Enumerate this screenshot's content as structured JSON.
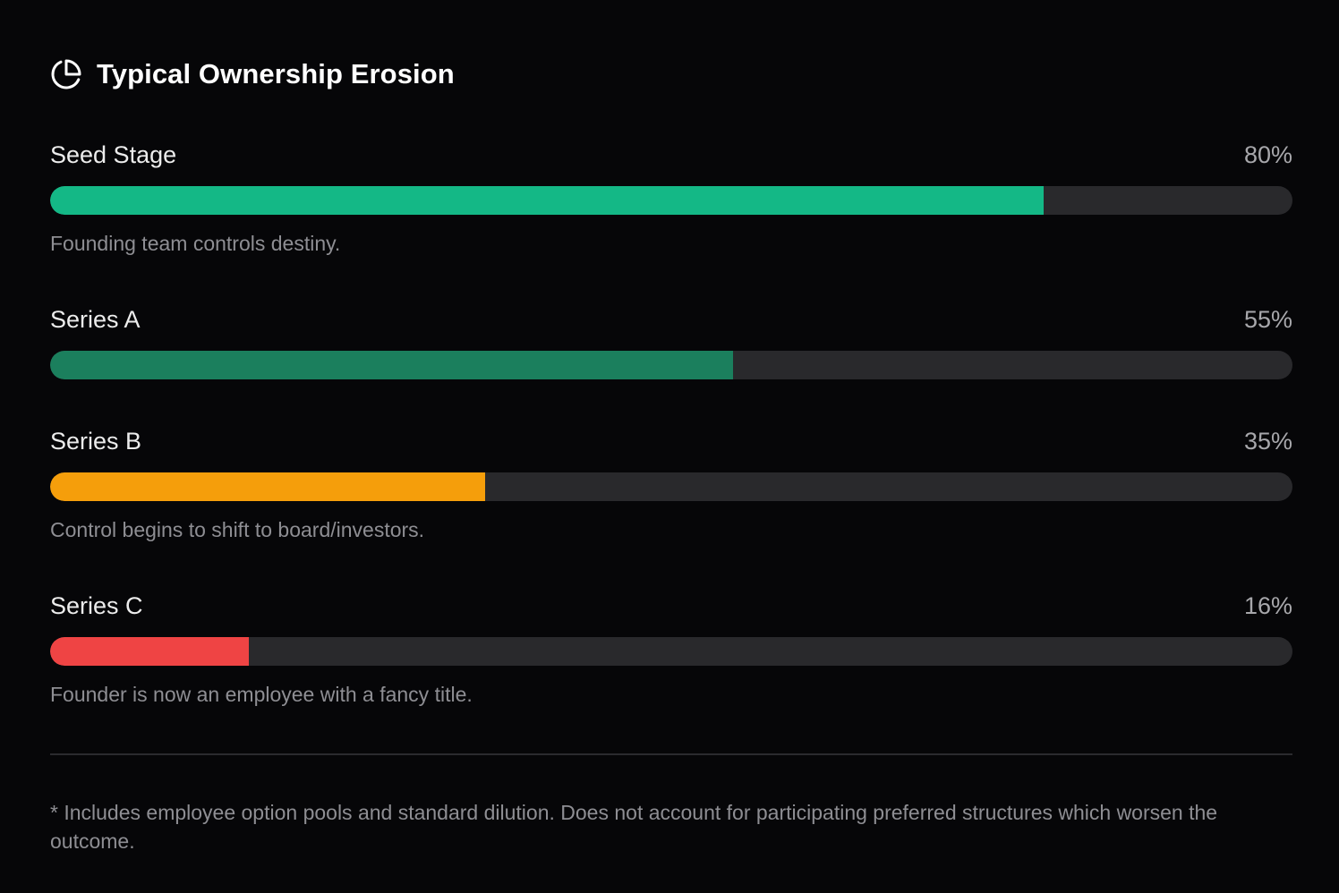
{
  "header": {
    "title": "Typical Ownership Erosion",
    "icon": "pie-chart-icon"
  },
  "chart_data": {
    "type": "bar",
    "title": "Typical Ownership Erosion",
    "orientation": "horizontal",
    "categories": [
      "Seed Stage",
      "Series A",
      "Series B",
      "Series C"
    ],
    "values": [
      80,
      55,
      35,
      16
    ],
    "value_labels": [
      "80%",
      "55%",
      "35%",
      "16%"
    ],
    "xlim": [
      0,
      100
    ],
    "colors": [
      "#14b886",
      "#1b7f5d",
      "#f59e0b",
      "#ef4444"
    ],
    "notes": [
      "Founding team controls destiny.",
      "",
      "Control begins to shift to board/investors.",
      "Founder is now an employee with a fancy title."
    ],
    "grid": false,
    "legend": "none"
  },
  "stages": [
    {
      "label": "Seed Stage",
      "pct": "80%",
      "note": "Founding team controls destiny."
    },
    {
      "label": "Series A",
      "pct": "55%",
      "note": ""
    },
    {
      "label": "Series B",
      "pct": "35%",
      "note": "Control begins to shift to board/investors."
    },
    {
      "label": "Series C",
      "pct": "16%",
      "note": "Founder is now an employee with a fancy title."
    }
  ],
  "footnote": "* Includes employee option pools and standard dilution. Does not account for participating preferred structures which worsen the outcome."
}
